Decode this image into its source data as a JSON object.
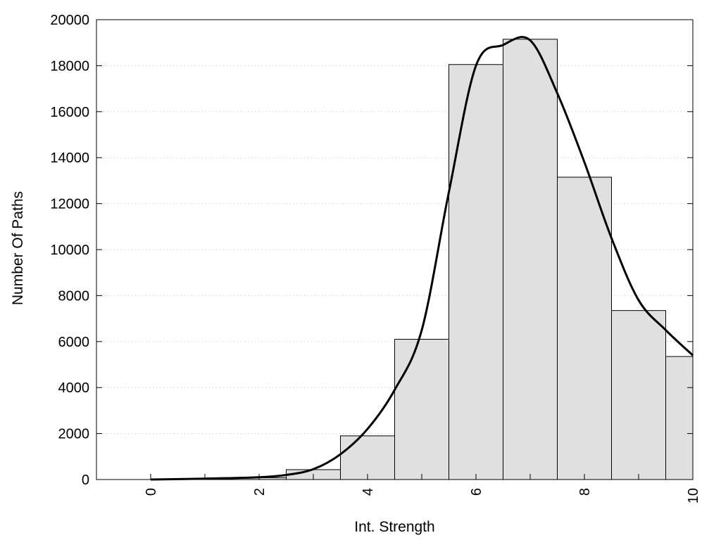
{
  "chart_data": {
    "type": "bar",
    "xlabel": "Int. Strength",
    "ylabel": "Number Of Paths",
    "xlim": [
      -1,
      10
    ],
    "ylim": [
      0,
      20000
    ],
    "x_ticks": [
      0,
      2,
      4,
      6,
      8,
      10
    ],
    "y_ticks": [
      0,
      2000,
      4000,
      6000,
      8000,
      10000,
      12000,
      14000,
      16000,
      18000,
      20000
    ],
    "grid": "horizontal dotted",
    "bin_width": 1,
    "bars": [
      {
        "x": 0,
        "value": 0
      },
      {
        "x": 1,
        "value": 30
      },
      {
        "x": 2,
        "value": 80
      },
      {
        "x": 3,
        "value": 430
      },
      {
        "x": 4,
        "value": 1900
      },
      {
        "x": 5,
        "value": 6100
      },
      {
        "x": 6,
        "value": 18050
      },
      {
        "x": 7,
        "value": 19150
      },
      {
        "x": 8,
        "value": 13150
      },
      {
        "x": 9,
        "value": 7350
      },
      {
        "x": 10,
        "value": 5350
      }
    ],
    "curve": {
      "x": [
        0,
        1,
        2,
        2.5,
        3,
        3.5,
        4,
        4.5,
        5,
        5.5,
        6,
        6.5,
        7,
        7.5,
        8,
        8.5,
        9,
        9.5,
        10
      ],
      "y": [
        0,
        40,
        100,
        200,
        450,
        1100,
        2200,
        3900,
        6500,
        12500,
        18000,
        18900,
        19100,
        16800,
        13800,
        10500,
        7800,
        6500,
        5400
      ]
    },
    "colors": {
      "bar_fill": "#e0e0e0",
      "bar_stroke": "#000000",
      "curve": "#000000",
      "grid": "#bbbbbb"
    }
  }
}
